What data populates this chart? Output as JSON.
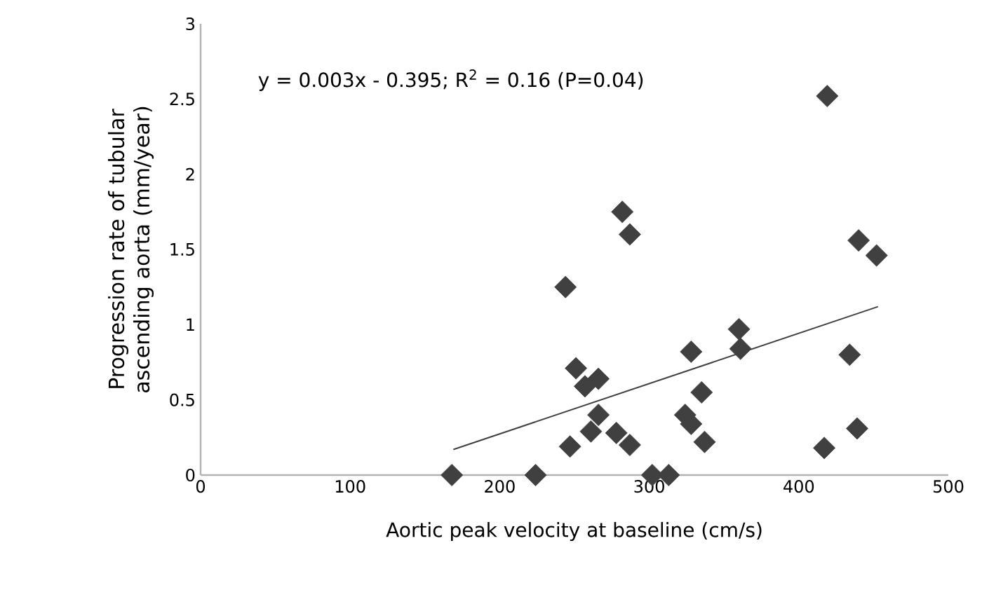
{
  "chart_data": {
    "type": "scatter",
    "xlabel": "Aortic peak velocity at baseline (cm/s)",
    "ylabel": "Progression rate of tubular ascending aorta (mm/year)",
    "annotations": [
      "y = 0.003x - 0.395; R$^{2}$ = 0.16 (P=0.04)"
    ],
    "xlim": [
      0,
      500
    ],
    "xticks": [
      0,
      100,
      200,
      300,
      400,
      500
    ],
    "ylim": [
      0,
      3
    ],
    "yticks": [
      0,
      0.5,
      1,
      1.5,
      2,
      2.5,
      3
    ],
    "grid": false,
    "marker": "diamond",
    "series": [
      {
        "color": "#404040",
        "x": [
          168,
          224,
          302,
          313,
          244,
          282,
          287,
          251,
          257,
          266,
          266,
          261,
          247,
          278,
          287,
          328,
          324,
          328,
          335,
          337,
          360,
          361,
          419,
          417,
          440,
          452,
          434,
          439
        ],
        "values": [
          0,
          0,
          0,
          0,
          1.25,
          1.75,
          1.6,
          0.71,
          0.59,
          0.64,
          0.4,
          0.29,
          0.19,
          0.28,
          0.2,
          0.82,
          0.4,
          0.34,
          0.55,
          0.22,
          0.97,
          0.84,
          2.52,
          0.18,
          1.56,
          1.46,
          0.8,
          0.31
        ]
      },
      {
        "type": "line",
        "color": "#404040",
        "marker": "none",
        "line_style": "solid",
        "x": [
          169,
          453
        ],
        "values": [
          0.17,
          1.12
        ]
      }
    ]
  }
}
